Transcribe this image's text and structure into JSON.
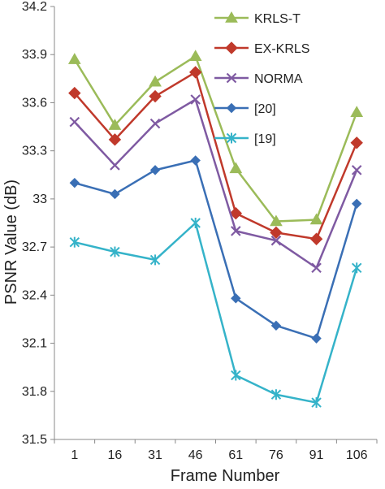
{
  "chart_data": {
    "type": "line",
    "xlabel": "Frame Number",
    "ylabel": "PSNR Value (dB)",
    "ylim": [
      31.5,
      34.2
    ],
    "y_ticks": [
      "31.5",
      "31.8",
      "32.1",
      "32.4",
      "32.7",
      "33",
      "33.3",
      "33.6",
      "33.9",
      "34.2"
    ],
    "categories": [
      "1",
      "16",
      "31",
      "46",
      "61",
      "76",
      "91",
      "106"
    ],
    "grid": false,
    "legend_position": "top-right",
    "series": [
      {
        "name": "KRLS-T",
        "color": "#9bbb59",
        "marker": "triangle",
        "values": [
          33.87,
          33.46,
          33.73,
          33.89,
          33.19,
          32.86,
          32.87,
          33.54
        ]
      },
      {
        "name": "EX-KRLS",
        "color": "#c0392b",
        "marker": "diamond",
        "values": [
          33.66,
          33.37,
          33.64,
          33.79,
          32.91,
          32.79,
          32.75,
          33.35
        ]
      },
      {
        "name": "NORMA",
        "color": "#7f5aa2",
        "marker": "x",
        "values": [
          33.48,
          33.21,
          33.47,
          33.62,
          32.8,
          32.74,
          32.57,
          33.18
        ]
      },
      {
        "name": "[20]",
        "color": "#3a6fb5",
        "marker": "diamond-small",
        "values": [
          33.1,
          33.03,
          33.18,
          33.24,
          32.38,
          32.21,
          32.13,
          32.97
        ]
      },
      {
        "name": "[19]",
        "color": "#35b3c9",
        "marker": "star",
        "values": [
          32.73,
          32.67,
          32.62,
          32.85,
          31.9,
          31.78,
          31.73,
          32.57
        ]
      }
    ]
  }
}
